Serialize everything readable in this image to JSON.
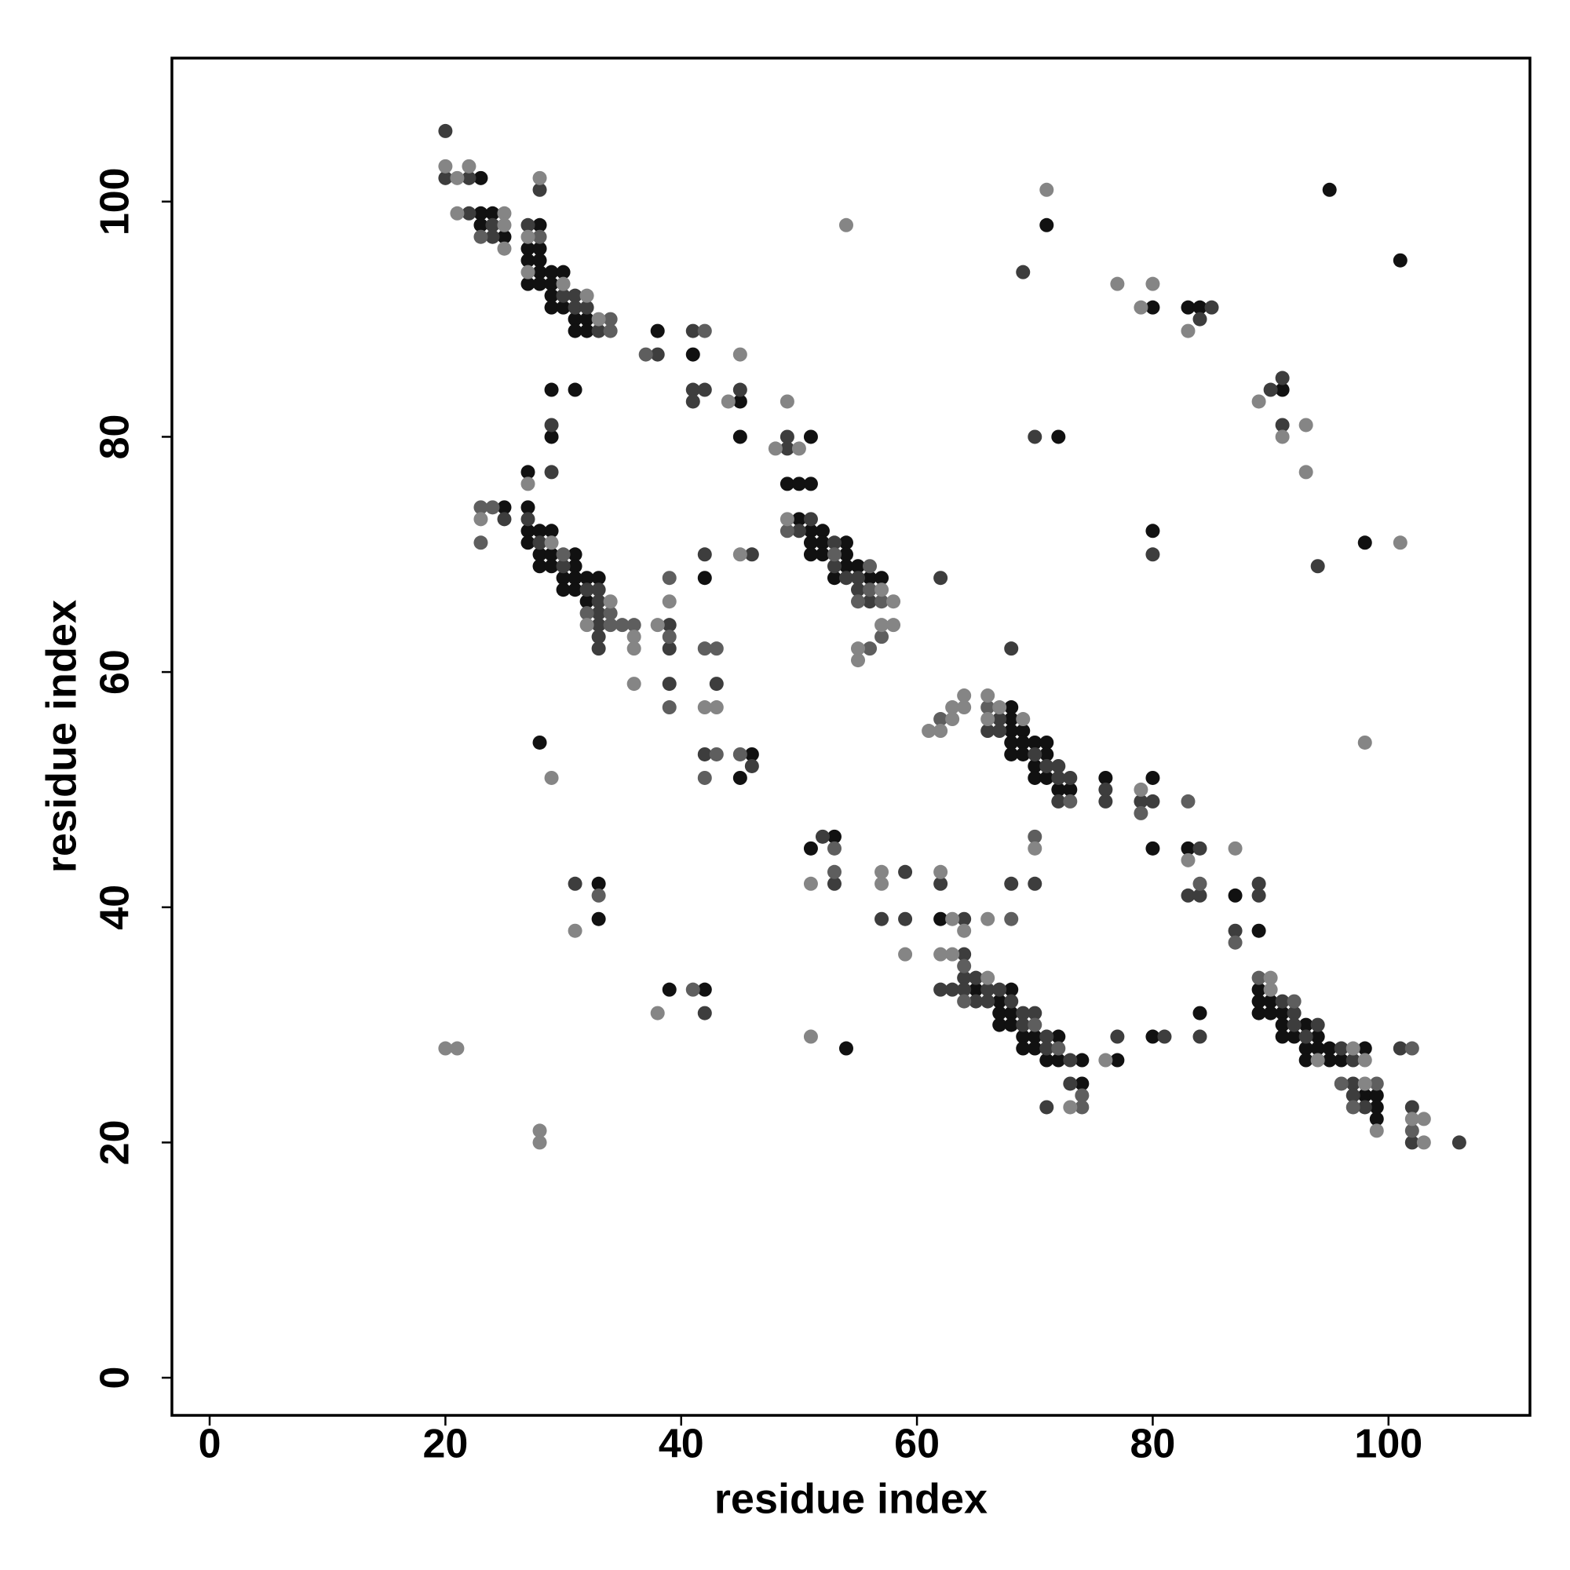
{
  "chart_data": {
    "type": "scatter",
    "xlabel": "residue index",
    "ylabel": "residue index",
    "xlim": [
      -3.2,
      112
    ],
    "ylim": [
      -3.2,
      112.2
    ],
    "xticks": [
      0,
      20,
      40,
      60,
      80,
      100
    ],
    "yticks": [
      0,
      20,
      40,
      60,
      80,
      100
    ],
    "series": [
      {
        "color": "#111111",
        "x": [
          23,
          23,
          24,
          23,
          25,
          28,
          27,
          28,
          27,
          28,
          28,
          29,
          30,
          27,
          28,
          29,
          29,
          29,
          30,
          31,
          32,
          31,
          32,
          38,
          41,
          45,
          45,
          29,
          31,
          29,
          27,
          51,
          49,
          50,
          51,
          50,
          51,
          52,
          51,
          52,
          54,
          51,
          52,
          54,
          54,
          55,
          53,
          56,
          57,
          42,
          25,
          27,
          27,
          28,
          29,
          27,
          28,
          29,
          31,
          28,
          29,
          31,
          32,
          30,
          31,
          33,
          30,
          31,
          32,
          46,
          45,
          28,
          68,
          68,
          68,
          69,
          68,
          69,
          70,
          71,
          68,
          69,
          71,
          70,
          70,
          71,
          72,
          73,
          76,
          80,
          80,
          83,
          87,
          89,
          51,
          53,
          62,
          65,
          68,
          67,
          67,
          68,
          67,
          68,
          69,
          70,
          72,
          69,
          70,
          71,
          72,
          74,
          74,
          77,
          80,
          84,
          54,
          39,
          42,
          33,
          33,
          89,
          89,
          90,
          89,
          90,
          91,
          91,
          93,
          91,
          92,
          94,
          93,
          94,
          95,
          98,
          93,
          95,
          96,
          98,
          99,
          99,
          99,
          71,
          80,
          83,
          84,
          95,
          101,
          91,
          72,
          80,
          98
        ],
        "values": [
          102,
          99,
          99,
          98,
          97,
          98,
          96,
          96,
          95,
          95,
          94,
          94,
          94,
          93,
          93,
          93,
          92,
          91,
          91,
          90,
          90,
          89,
          89,
          89,
          87,
          83,
          80,
          84,
          84,
          80,
          77,
          80,
          76,
          76,
          76,
          73,
          72,
          72,
          71,
          71,
          71,
          70,
          70,
          70,
          69,
          69,
          68,
          68,
          68,
          68,
          74,
          74,
          72,
          72,
          72,
          71,
          70,
          70,
          70,
          69,
          69,
          69,
          68,
          68,
          68,
          68,
          67,
          67,
          66,
          53,
          51,
          54,
          57,
          56,
          55,
          55,
          54,
          54,
          54,
          54,
          53,
          53,
          53,
          52,
          51,
          51,
          50,
          50,
          51,
          51,
          45,
          45,
          41,
          38,
          45,
          46,
          39,
          33,
          33,
          32,
          31,
          31,
          30,
          30,
          29,
          29,
          29,
          28,
          28,
          27,
          27,
          27,
          25,
          27,
          29,
          31,
          28,
          33,
          33,
          42,
          39,
          33,
          32,
          32,
          31,
          31,
          31,
          30,
          30,
          29,
          29,
          29,
          28,
          28,
          28,
          28,
          27,
          27,
          27,
          24,
          24,
          23,
          22,
          98,
          91,
          91,
          91,
          101,
          95,
          84,
          80,
          72,
          71
        ]
      },
      {
        "color": "#3d3d3d",
        "x": [
          20,
          20,
          22,
          22,
          24,
          24,
          27,
          28,
          30,
          31,
          31,
          32,
          33,
          41,
          38,
          41,
          42,
          45,
          41,
          29,
          29,
          49,
          49,
          51,
          50,
          53,
          53,
          54,
          55,
          55,
          56,
          62,
          42,
          46,
          25,
          27,
          28,
          30,
          32,
          33,
          33,
          33,
          33,
          33,
          33,
          39,
          39,
          39,
          43,
          42,
          46,
          67,
          66,
          67,
          70,
          71,
          72,
          72,
          73,
          72,
          76,
          76,
          79,
          80,
          68,
          84,
          83,
          84,
          68,
          70,
          89,
          89,
          87,
          52,
          53,
          59,
          62,
          57,
          59,
          64,
          64,
          64,
          65,
          62,
          63,
          64,
          66,
          67,
          65,
          66,
          68,
          69,
          70,
          69,
          71,
          71,
          73,
          73,
          71,
          77,
          81,
          84,
          42,
          31,
          91,
          92,
          92,
          94,
          93,
          96,
          97,
          97,
          97,
          98,
          101,
          102,
          102,
          106,
          69,
          85,
          84,
          90,
          91,
          91,
          70,
          80,
          94
        ],
        "values": [
          106,
          102,
          102,
          99,
          98,
          97,
          98,
          101,
          92,
          92,
          91,
          91,
          89,
          89,
          87,
          84,
          84,
          84,
          83,
          81,
          77,
          79,
          80,
          73,
          72,
          71,
          69,
          68,
          68,
          67,
          66,
          68,
          70,
          70,
          73,
          73,
          71,
          69,
          67,
          67,
          66,
          65,
          64,
          63,
          62,
          64,
          62,
          59,
          59,
          53,
          52,
          56,
          55,
          55,
          53,
          52,
          52,
          51,
          51,
          49,
          50,
          49,
          49,
          49,
          62,
          45,
          41,
          41,
          42,
          42,
          42,
          41,
          38,
          46,
          42,
          43,
          42,
          39,
          39,
          39,
          36,
          34,
          34,
          33,
          33,
          33,
          33,
          33,
          32,
          32,
          32,
          31,
          31,
          30,
          29,
          28,
          27,
          25,
          23,
          29,
          29,
          29,
          31,
          42,
          32,
          31,
          30,
          30,
          29,
          28,
          27,
          25,
          24,
          23,
          28,
          23,
          20,
          20,
          94,
          91,
          90,
          84,
          85,
          81,
          80,
          70,
          69
        ]
      },
      {
        "color": "#5e5e5e",
        "x": [
          23,
          28,
          34,
          34,
          37,
          42,
          49,
          53,
          56,
          56,
          55,
          57,
          57,
          56,
          23,
          24,
          23,
          30,
          32,
          34,
          34,
          35,
          36,
          39,
          39,
          42,
          43,
          39,
          43,
          45,
          42,
          62,
          66,
          73,
          79,
          83,
          84,
          70,
          68,
          87,
          53,
          53,
          64,
          64,
          70,
          72,
          74,
          74,
          41,
          33,
          89,
          92,
          96,
          99,
          97,
          102,
          102
        ],
        "values": [
          97,
          97,
          90,
          89,
          87,
          89,
          72,
          70,
          69,
          67,
          66,
          66,
          63,
          62,
          74,
          74,
          71,
          70,
          65,
          65,
          64,
          64,
          64,
          63,
          68,
          62,
          62,
          57,
          53,
          53,
          51,
          56,
          57,
          49,
          48,
          49,
          42,
          46,
          39,
          37,
          45,
          43,
          35,
          32,
          30,
          28,
          24,
          23,
          33,
          41,
          34,
          32,
          25,
          25,
          23,
          28,
          21
        ]
      },
      {
        "color": "#858585",
        "x": [
          20,
          21,
          22,
          21,
          25,
          25,
          25,
          28,
          27,
          27,
          30,
          32,
          33,
          45,
          44,
          27,
          48,
          50,
          49,
          49,
          57,
          58,
          57,
          58,
          55,
          55,
          45,
          54,
          23,
          29,
          34,
          32,
          36,
          36,
          38,
          39,
          36,
          42,
          43,
          29,
          66,
          64,
          63,
          64,
          63,
          61,
          62,
          67,
          66,
          69,
          79,
          83,
          87,
          70,
          51,
          57,
          57,
          62,
          63,
          64,
          66,
          59,
          62,
          63,
          66,
          73,
          76,
          51,
          38,
          31,
          20,
          21,
          28,
          28,
          90,
          90,
          97,
          94,
          98,
          98,
          99,
          102,
          103,
          103,
          71,
          77,
          79,
          80,
          83,
          89,
          91,
          93,
          93,
          101,
          98
        ],
        "values": [
          103,
          102,
          103,
          99,
          99,
          98,
          96,
          102,
          97,
          94,
          93,
          92,
          90,
          87,
          83,
          76,
          79,
          79,
          83,
          73,
          67,
          66,
          64,
          64,
          62,
          61,
          70,
          98,
          73,
          71,
          66,
          64,
          63,
          62,
          64,
          66,
          59,
          57,
          57,
          51,
          58,
          58,
          57,
          57,
          56,
          55,
          55,
          57,
          56,
          56,
          50,
          44,
          45,
          45,
          42,
          43,
          42,
          43,
          39,
          38,
          39,
          36,
          36,
          36,
          34,
          23,
          27,
          29,
          31,
          38,
          28,
          28,
          21,
          20,
          34,
          33,
          28,
          27,
          27,
          25,
          21,
          22,
          22,
          20,
          101,
          93,
          91,
          93,
          89,
          83,
          80,
          81,
          77,
          71,
          54
        ]
      }
    ]
  }
}
